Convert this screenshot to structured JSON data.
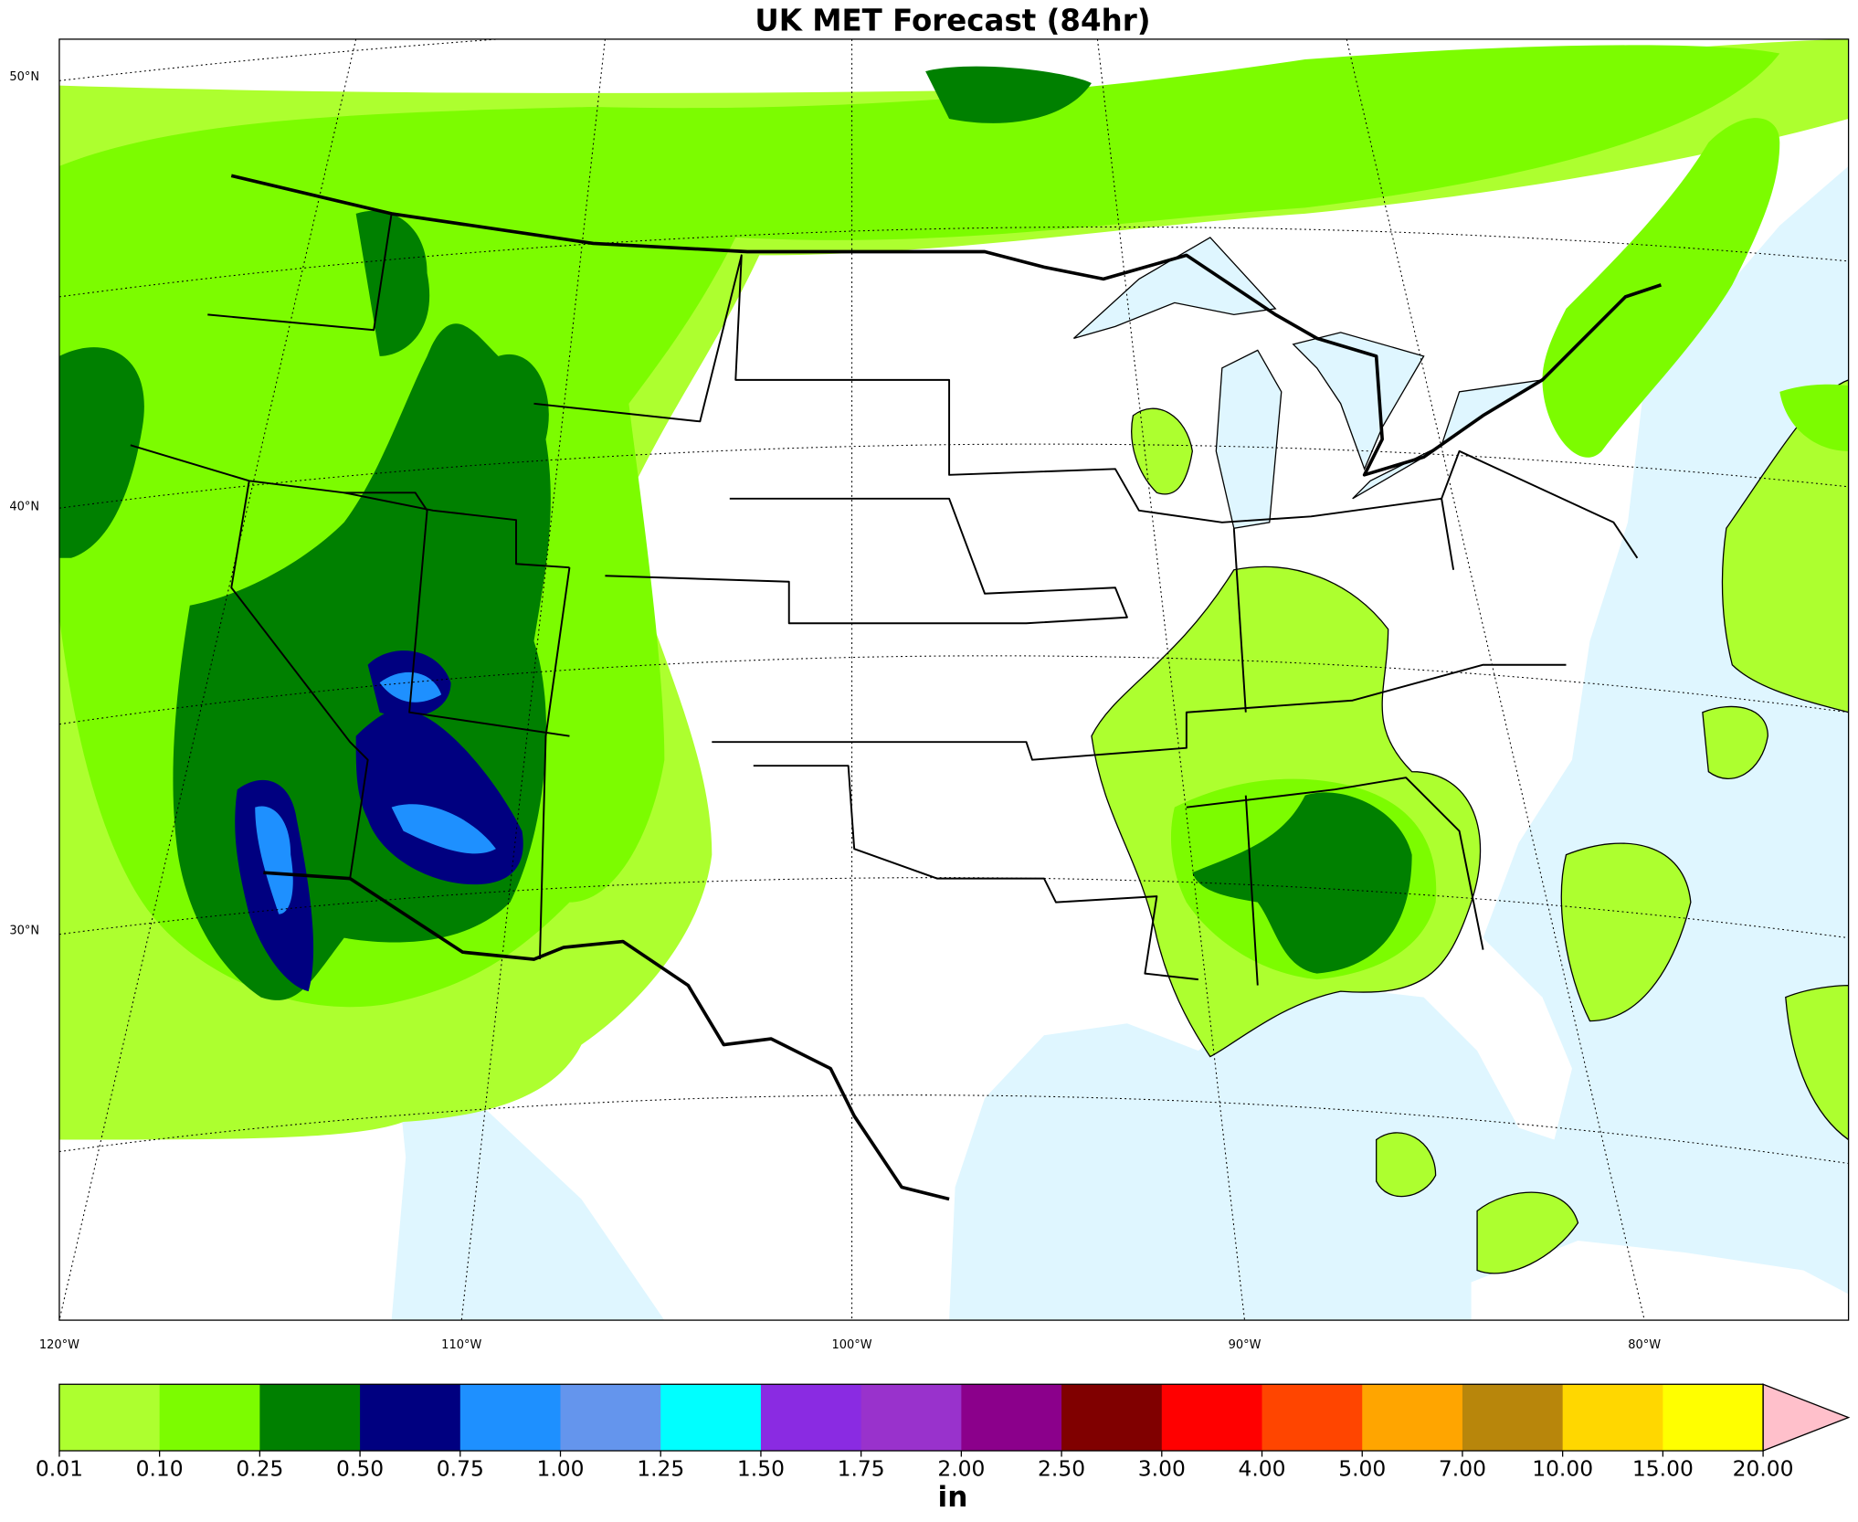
{
  "title": "UK MET Forecast (84hr)",
  "map": {
    "lat_labels": [
      "50°N",
      "40°N",
      "30°N"
    ],
    "lon_labels": [
      "120°W",
      "110°W",
      "100°W",
      "90°W",
      "80°W"
    ]
  },
  "colorbar": {
    "unit": "in",
    "ticks": [
      {
        "value": 0.01,
        "label": "0.01"
      },
      {
        "value": 0.1,
        "label": "0.10"
      },
      {
        "value": 0.25,
        "label": "0.25"
      },
      {
        "value": 0.5,
        "label": "0.50"
      },
      {
        "value": 0.75,
        "label": "0.75"
      },
      {
        "value": 1,
        "label": "1.00"
      },
      {
        "value": 1.25,
        "label": "1.25"
      },
      {
        "value": 1.5,
        "label": "1.50"
      },
      {
        "value": 1.75,
        "label": "1.75"
      },
      {
        "value": 2,
        "label": "2.00"
      },
      {
        "value": 2.5,
        "label": "2.50"
      },
      {
        "value": 3,
        "label": "3.00"
      },
      {
        "value": 4,
        "label": "4.00"
      },
      {
        "value": 5,
        "label": "5.00"
      },
      {
        "value": 7,
        "label": "7.00"
      },
      {
        "value": 10,
        "label": "10.00"
      },
      {
        "value": 15,
        "label": "15.00"
      },
      {
        "value": 20,
        "label": "20.00"
      }
    ],
    "colors": [
      "#adff2f",
      "#7cfc00",
      "#008000",
      "#000080",
      "#1e90ff",
      "#6495ed",
      "#00ffff",
      "#8a2be2",
      "#9932cc",
      "#8b008b",
      "#800000",
      "#ff0000",
      "#ff4500",
      "#ffa500",
      "#b8860b",
      "#ffd700",
      "#ffff00"
    ],
    "extend_color": "#ffc0cb"
  }
}
